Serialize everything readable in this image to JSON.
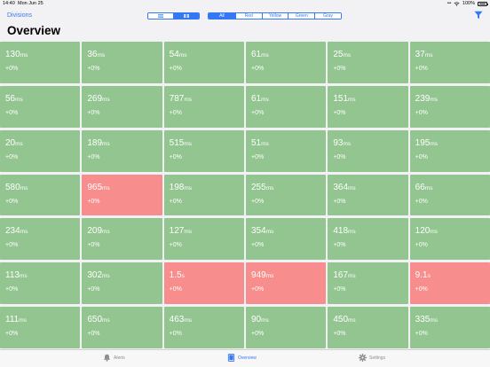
{
  "status": {
    "time": "14:40",
    "date": "Mon Jun 25",
    "dots": "•••",
    "battery": "100%"
  },
  "nav": {
    "back": "Divisions"
  },
  "view_segments": [
    {
      "icon": "list-icon",
      "active": false
    },
    {
      "icon": "grid-icon",
      "active": true
    }
  ],
  "color_segments": [
    {
      "label": "All",
      "active": true
    },
    {
      "label": "Red",
      "active": false
    },
    {
      "label": "Yellow",
      "active": false
    },
    {
      "label": "Green",
      "active": false
    },
    {
      "label": "Gray",
      "active": false
    }
  ],
  "title": "Overview",
  "colors": {
    "green": "#92c58f",
    "red": "#f78d8d",
    "accent": "#3478f6"
  },
  "cells": [
    {
      "value": "130",
      "unit": "ms",
      "delta": "+0%",
      "status": "green"
    },
    {
      "value": "36",
      "unit": "ms",
      "delta": "+0%",
      "status": "green"
    },
    {
      "value": "54",
      "unit": "ms",
      "delta": "+0%",
      "status": "green"
    },
    {
      "value": "61",
      "unit": "ms",
      "delta": "+0%",
      "status": "green"
    },
    {
      "value": "25",
      "unit": "ms",
      "delta": "+0%",
      "status": "green"
    },
    {
      "value": "37",
      "unit": "ms",
      "delta": "+0%",
      "status": "green"
    },
    {
      "value": "56",
      "unit": "ms",
      "delta": "+0%",
      "status": "green"
    },
    {
      "value": "269",
      "unit": "ms",
      "delta": "+0%",
      "status": "green"
    },
    {
      "value": "787",
      "unit": "ms",
      "delta": "+0%",
      "status": "green"
    },
    {
      "value": "61",
      "unit": "ms",
      "delta": "+0%",
      "status": "green"
    },
    {
      "value": "151",
      "unit": "ms",
      "delta": "+0%",
      "status": "green"
    },
    {
      "value": "239",
      "unit": "ms",
      "delta": "+0%",
      "status": "green"
    },
    {
      "value": "20",
      "unit": "ms",
      "delta": "+0%",
      "status": "green"
    },
    {
      "value": "189",
      "unit": "ms",
      "delta": "+0%",
      "status": "green"
    },
    {
      "value": "515",
      "unit": "ms",
      "delta": "+0%",
      "status": "green"
    },
    {
      "value": "51",
      "unit": "ms",
      "delta": "+0%",
      "status": "green"
    },
    {
      "value": "93",
      "unit": "ms",
      "delta": "+0%",
      "status": "green"
    },
    {
      "value": "195",
      "unit": "ms",
      "delta": "+0%",
      "status": "green"
    },
    {
      "value": "580",
      "unit": "ms",
      "delta": "+0%",
      "status": "green"
    },
    {
      "value": "965",
      "unit": "ms",
      "delta": "+0%",
      "status": "red"
    },
    {
      "value": "198",
      "unit": "ms",
      "delta": "+0%",
      "status": "green"
    },
    {
      "value": "255",
      "unit": "ms",
      "delta": "+0%",
      "status": "green"
    },
    {
      "value": "364",
      "unit": "ms",
      "delta": "+0%",
      "status": "green"
    },
    {
      "value": "66",
      "unit": "ms",
      "delta": "+0%",
      "status": "green"
    },
    {
      "value": "234",
      "unit": "ms",
      "delta": "+0%",
      "status": "green"
    },
    {
      "value": "209",
      "unit": "ms",
      "delta": "+0%",
      "status": "green"
    },
    {
      "value": "127",
      "unit": "ms",
      "delta": "+0%",
      "status": "green"
    },
    {
      "value": "354",
      "unit": "ms",
      "delta": "+0%",
      "status": "green"
    },
    {
      "value": "418",
      "unit": "ms",
      "delta": "+0%",
      "status": "green"
    },
    {
      "value": "120",
      "unit": "ms",
      "delta": "+0%",
      "status": "green"
    },
    {
      "value": "113",
      "unit": "ms",
      "delta": "+0%",
      "status": "green"
    },
    {
      "value": "302",
      "unit": "ms",
      "delta": "+0%",
      "status": "green"
    },
    {
      "value": "1.5",
      "unit": "s",
      "delta": "+0%",
      "status": "red"
    },
    {
      "value": "949",
      "unit": "ms",
      "delta": "+0%",
      "status": "red"
    },
    {
      "value": "167",
      "unit": "ms",
      "delta": "+0%",
      "status": "green"
    },
    {
      "value": "9.1",
      "unit": "s",
      "delta": "+0%",
      "status": "red"
    },
    {
      "value": "111",
      "unit": "ms",
      "delta": "+0%",
      "status": "green"
    },
    {
      "value": "650",
      "unit": "ms",
      "delta": "+0%",
      "status": "green"
    },
    {
      "value": "463",
      "unit": "ms",
      "delta": "+0%",
      "status": "green"
    },
    {
      "value": "90",
      "unit": "ms",
      "delta": "+0%",
      "status": "green"
    },
    {
      "value": "450",
      "unit": "ms",
      "delta": "+0%",
      "status": "green"
    },
    {
      "value": "335",
      "unit": "ms",
      "delta": "+0%",
      "status": "green"
    }
  ],
  "tabs": [
    {
      "label": "Alerts",
      "icon": "bell-icon",
      "active": false
    },
    {
      "label": "Overview",
      "icon": "tablet-icon",
      "active": true
    },
    {
      "label": "Settings",
      "icon": "gear-icon",
      "active": false
    }
  ]
}
